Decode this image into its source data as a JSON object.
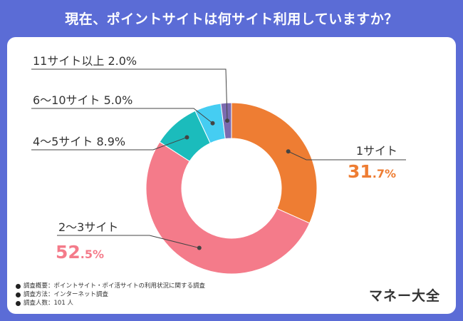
{
  "title": "現在、ポイントサイトは何サイト利用していますか？",
  "brand": "マネー大全",
  "notes": [
    "調査概要：ポイントサイト・ポイ活サイトの利用状況に関する調査",
    "調査方法：インターネット調査",
    "調査人数：101 人"
  ],
  "chart_data": {
    "type": "pie",
    "donut": true,
    "title": "現在、ポイントサイトは何サイト利用していますか？",
    "unit": "%",
    "slices": [
      {
        "label": "1サイト",
        "value": 31.7,
        "color": "#ee7d33",
        "int": "31",
        "dec": ".7%"
      },
      {
        "label": "2〜3サイト",
        "value": 52.5,
        "color": "#f47b8a",
        "int": "52",
        "dec": ".5%"
      },
      {
        "label": "4〜5サイト",
        "value": 8.9,
        "color": "#1bbcbc",
        "text": "8.9%"
      },
      {
        "label": "6〜10サイト",
        "value": 5.0,
        "color": "#45cdf2",
        "text": "5.0%"
      },
      {
        "label": "11サイト以上",
        "value": 2.0,
        "color": "#7b6bb0",
        "text": "2.0%"
      }
    ]
  }
}
